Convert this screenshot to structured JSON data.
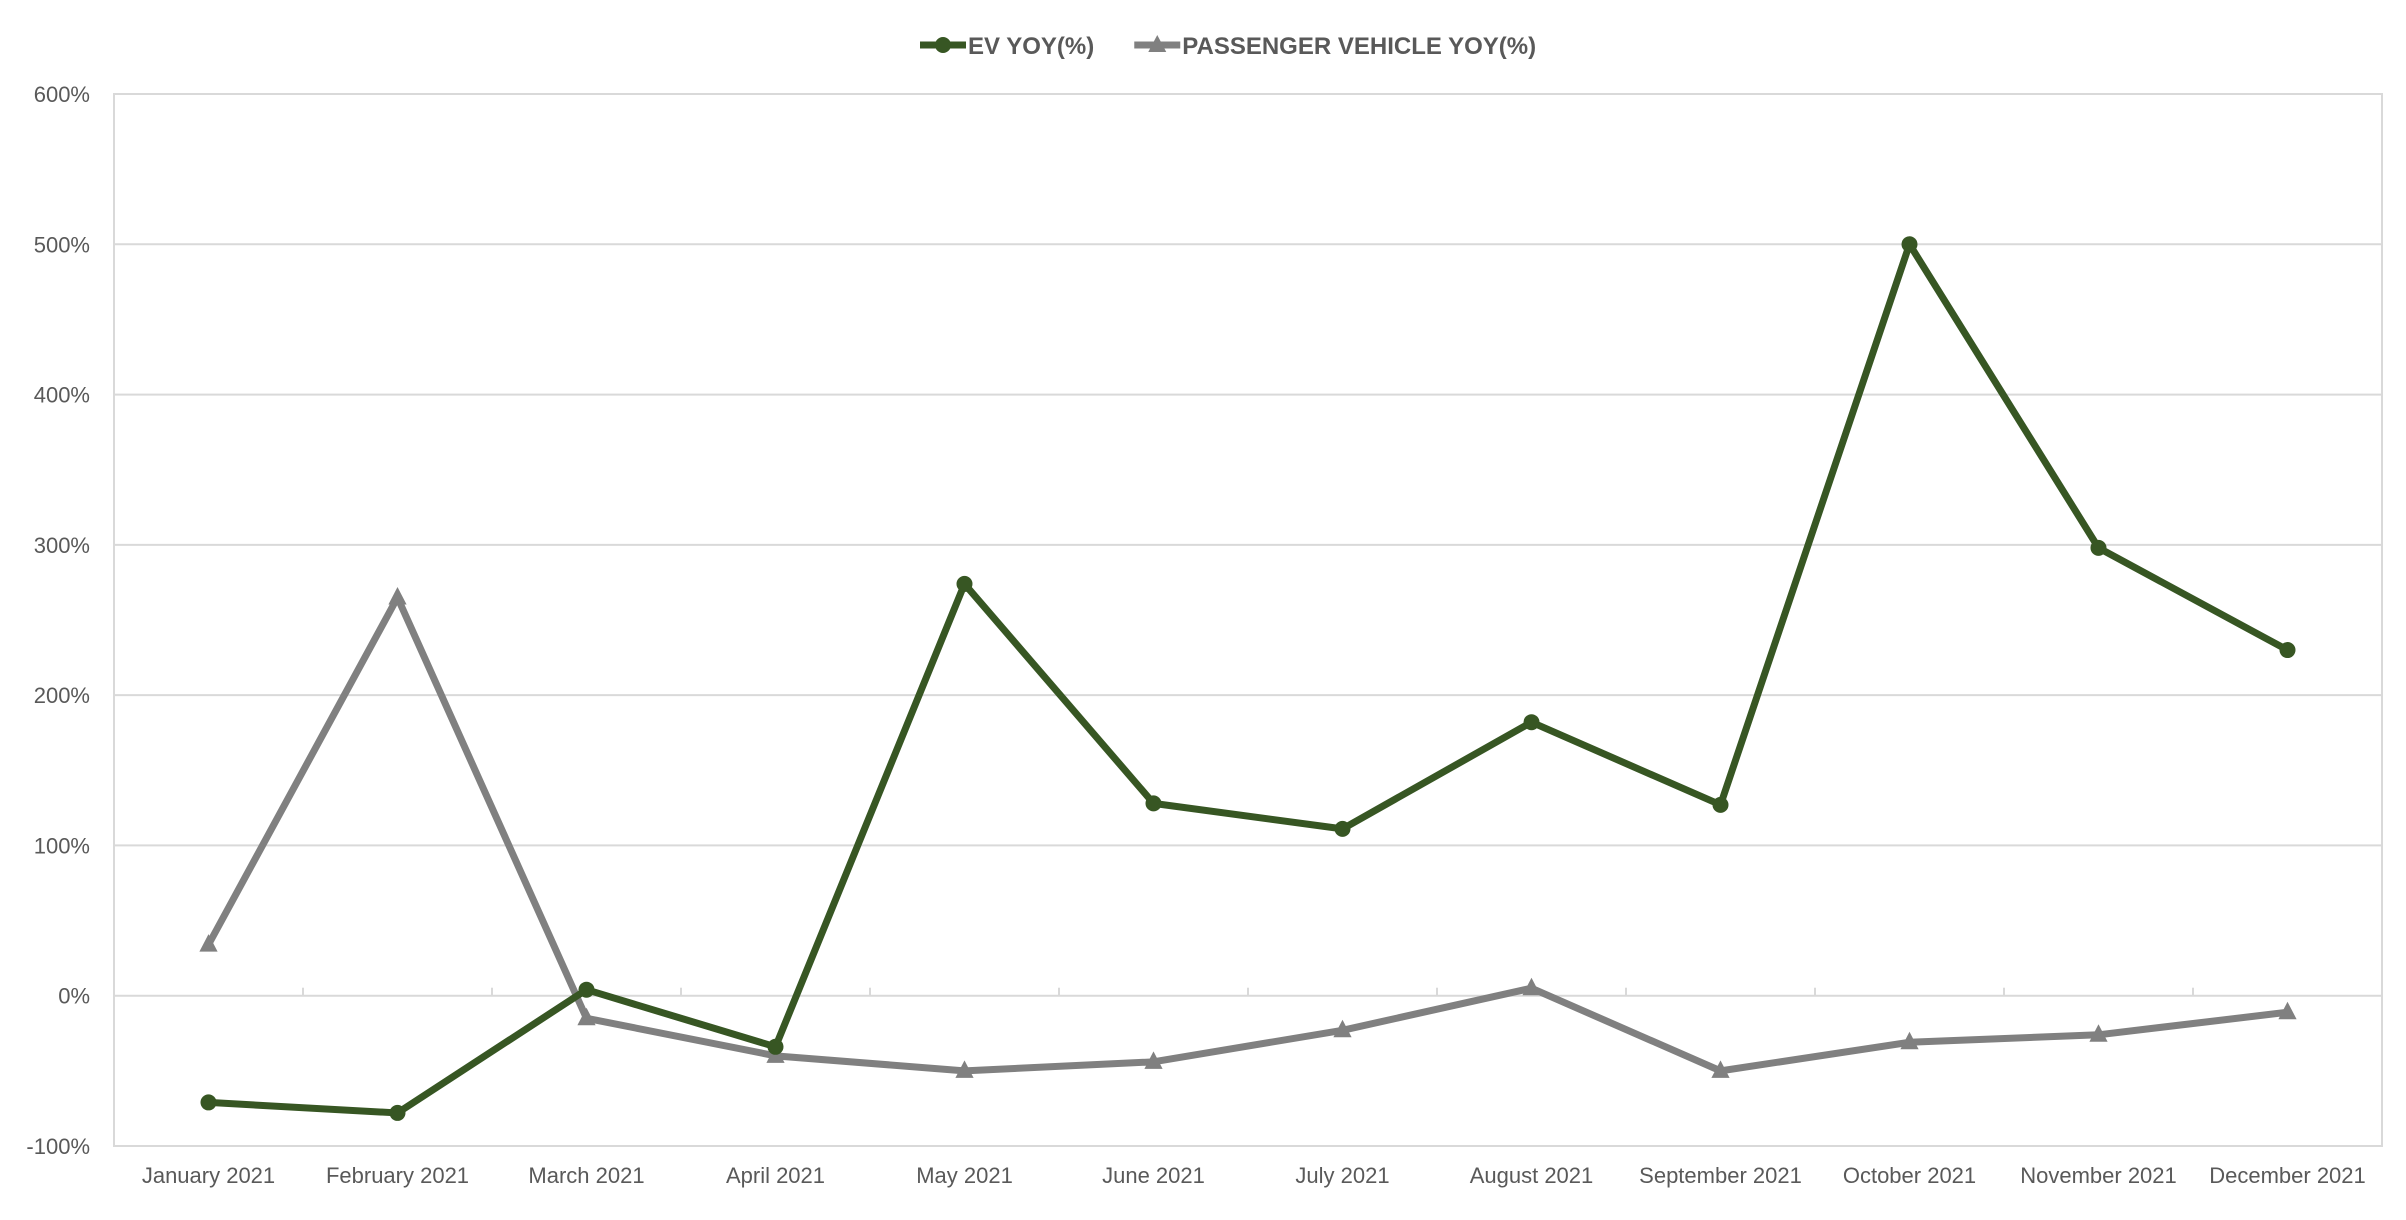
{
  "chart_data": {
    "type": "line",
    "title": "",
    "xlabel": "",
    "ylabel": "",
    "categories": [
      "January 2021",
      "February 2021",
      "March 2021",
      "April 2021",
      "May 2021",
      "June 2021",
      "July 2021",
      "August 2021",
      "September 2021",
      "October 2021",
      "November 2021",
      "December 2021"
    ],
    "ylim": [
      -100,
      600
    ],
    "yticks": [
      -100,
      0,
      100,
      200,
      300,
      400,
      500,
      600
    ],
    "ytick_labels": [
      "-100%",
      "0%",
      "100%",
      "200%",
      "300%",
      "400%",
      "500%",
      "600%"
    ],
    "grid": true,
    "legend_position": "top-center",
    "series": [
      {
        "name": "EV YOY(%)",
        "color": "#375623",
        "marker": "circle",
        "values": [
          -71,
          -78,
          4,
          -34,
          274,
          128,
          111,
          182,
          127,
          500,
          298,
          230
        ]
      },
      {
        "name": "PASSENGER VEHICLE YOY(%)",
        "color": "#808080",
        "marker": "triangle",
        "values": [
          34,
          265,
          -15,
          -40,
          -50,
          -44,
          -23,
          5,
          -50,
          -31,
          -26,
          -11
        ]
      }
    ]
  }
}
